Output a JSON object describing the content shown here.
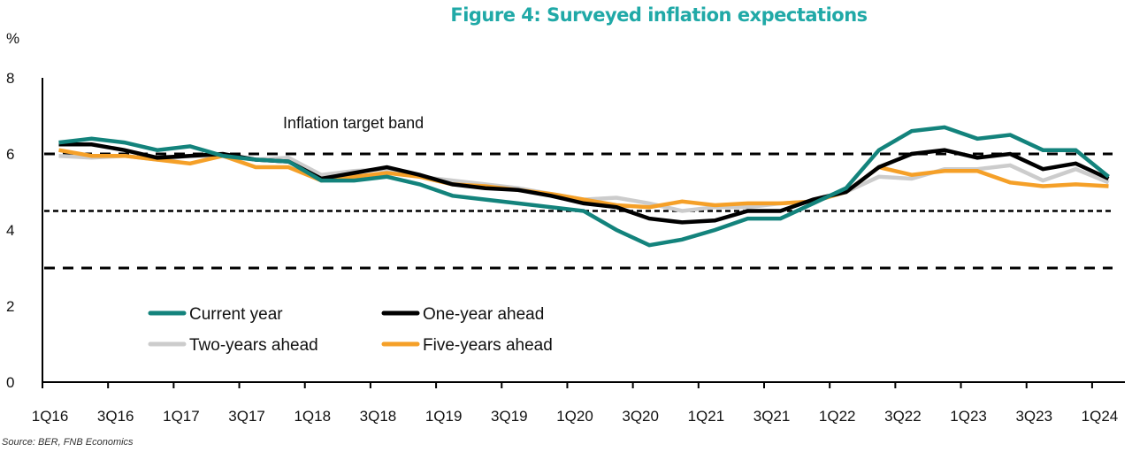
{
  "chart_data": {
    "type": "line",
    "title": "Figure 4: Surveyed inflation expectations",
    "ylabel": "%",
    "xlabel": "",
    "ylim": [
      0,
      8
    ],
    "yticks": [
      0,
      2,
      4,
      6,
      8
    ],
    "grid": false,
    "legend_position": "bottom-left",
    "categories": [
      "1Q16",
      "2Q16",
      "3Q16",
      "4Q16",
      "1Q17",
      "2Q17",
      "3Q17",
      "4Q17",
      "1Q18",
      "2Q18",
      "3Q18",
      "4Q18",
      "1Q19",
      "2Q19",
      "3Q19",
      "4Q19",
      "1Q20",
      "2Q20",
      "3Q20",
      "4Q20",
      "1Q21",
      "2Q21",
      "3Q21",
      "4Q21",
      "1Q22",
      "2Q22",
      "3Q22",
      "4Q22",
      "1Q23",
      "2Q23",
      "3Q23",
      "4Q23",
      "1Q24"
    ],
    "xtick_labels": [
      "1Q16",
      "3Q16",
      "1Q17",
      "3Q17",
      "1Q18",
      "3Q18",
      "1Q19",
      "3Q19",
      "1Q20",
      "3Q20",
      "1Q21",
      "3Q21",
      "1Q22",
      "3Q22",
      "1Q23",
      "3Q23",
      "1Q24"
    ],
    "series": [
      {
        "name": "Current year",
        "color": "#13837c",
        "values": [
          6.3,
          6.4,
          6.3,
          6.1,
          6.2,
          5.95,
          5.85,
          5.8,
          5.3,
          5.3,
          5.4,
          5.2,
          4.9,
          4.8,
          4.7,
          4.6,
          4.5,
          4.0,
          3.6,
          3.75,
          4.0,
          4.3,
          4.3,
          4.7,
          5.1,
          6.1,
          6.6,
          6.7,
          6.4,
          6.5,
          6.1,
          6.1,
          5.4
        ]
      },
      {
        "name": "One-year ahead",
        "color": "#000000",
        "values": [
          6.25,
          6.25,
          6.1,
          5.9,
          5.95,
          6.0,
          5.85,
          5.8,
          5.35,
          5.5,
          5.65,
          5.45,
          5.2,
          5.1,
          5.05,
          4.9,
          4.7,
          4.6,
          4.3,
          4.2,
          4.25,
          4.5,
          4.5,
          4.8,
          5.0,
          5.65,
          6.0,
          6.1,
          5.9,
          6.0,
          5.6,
          5.75,
          5.35
        ]
      },
      {
        "name": "Two-years ahead",
        "color": "#cccccc",
        "values": [
          5.95,
          5.9,
          5.95,
          5.85,
          5.95,
          5.95,
          5.85,
          5.9,
          5.45,
          5.55,
          5.6,
          5.4,
          5.3,
          5.2,
          5.1,
          4.95,
          4.8,
          4.85,
          4.7,
          4.5,
          4.6,
          4.6,
          4.7,
          4.75,
          5.0,
          5.4,
          5.35,
          5.6,
          5.6,
          5.7,
          5.3,
          5.6,
          5.25
        ]
      },
      {
        "name": "Five-years ahead",
        "color": "#f5a028",
        "values": [
          6.1,
          5.95,
          5.95,
          5.85,
          5.75,
          5.95,
          5.65,
          5.65,
          5.3,
          5.4,
          5.5,
          5.4,
          5.2,
          5.15,
          5.05,
          4.95,
          4.8,
          4.65,
          4.6,
          4.75,
          4.65,
          4.7,
          4.7,
          4.75,
          5.0,
          5.65,
          5.45,
          5.55,
          5.55,
          5.25,
          5.15,
          5.2,
          5.15
        ]
      }
    ],
    "reference_lines": [
      {
        "name": "upper-target",
        "value": 6.0,
        "style": "dashed"
      },
      {
        "name": "midpoint",
        "value": 4.5,
        "style": "dotted"
      },
      {
        "name": "lower-target",
        "value": 3.0,
        "style": "dashed"
      }
    ],
    "annotations": [
      {
        "text": "Inflation  target band",
        "x": "3Q17",
        "y": 6.8
      }
    ]
  },
  "source": "Source: BER, FNB Economics"
}
